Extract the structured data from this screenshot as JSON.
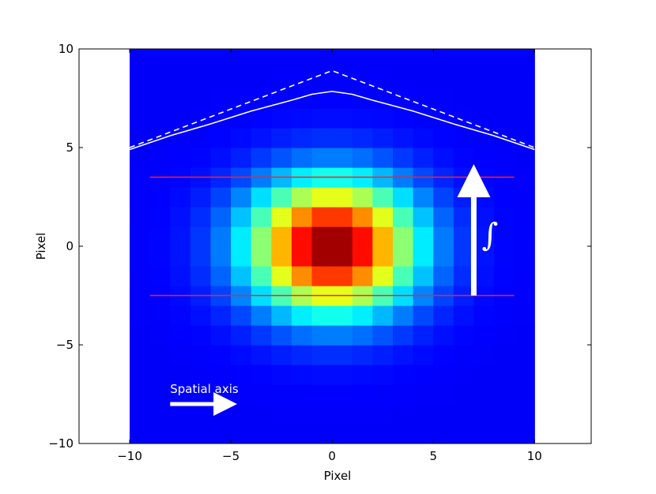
{
  "chart_data": {
    "type": "heatmap",
    "xlabel": "Pixel",
    "ylabel": "Pixel",
    "xlim": [
      -12.5,
      12.8
    ],
    "ylim": [
      -10,
      10
    ],
    "x_ticks": [
      -10,
      -5,
      0,
      5,
      10
    ],
    "y_ticks": [
      -10,
      -5,
      0,
      5,
      10
    ],
    "x_tick_labels": [
      "−10",
      "−5",
      "0",
      "5",
      "10"
    ],
    "y_tick_labels": [
      "−10",
      "−5",
      "0",
      "5",
      "10"
    ],
    "grid": false,
    "heatmap": {
      "extent_x": [
        -10,
        10
      ],
      "extent_y": [
        -10,
        10
      ],
      "cell_size": 1,
      "center": [
        0,
        0
      ],
      "sigma_x": 2.8,
      "sigma_y": 2.3,
      "colormap": "jet"
    },
    "series": [
      {
        "style": "solid",
        "color": "#ffffff",
        "x": [
          -10,
          -8,
          -6,
          -4,
          -2,
          -1,
          0,
          1,
          2,
          4,
          6,
          8,
          10
        ],
        "y": [
          4.9,
          5.6,
          6.2,
          6.85,
          7.4,
          7.7,
          7.85,
          7.7,
          7.4,
          6.85,
          6.2,
          5.6,
          4.9
        ]
      },
      {
        "style": "dashed",
        "color": "#ffffff",
        "x": [
          -10,
          0,
          10
        ],
        "y": [
          5.0,
          8.9,
          5.0
        ]
      },
      {
        "style": "solid",
        "color": "#ff2020",
        "x": [
          -9,
          9
        ],
        "y": [
          3.5,
          3.5
        ]
      },
      {
        "style": "solid",
        "color": "#ff2020",
        "x": [
          -9,
          9
        ],
        "y": [
          -2.5,
          -2.5
        ]
      }
    ],
    "annotations": {
      "spatial_axis_text": "Spatial axis",
      "spatial_arrow": {
        "x_from": -8,
        "x_to": -5,
        "y": -8
      },
      "integral_symbol": "∫",
      "integral_arrow": {
        "x": 7,
        "y_from": -2.5,
        "y_to": 3.6
      },
      "integral_label_pos": {
        "x": 7.8,
        "y": 0.6
      }
    }
  }
}
